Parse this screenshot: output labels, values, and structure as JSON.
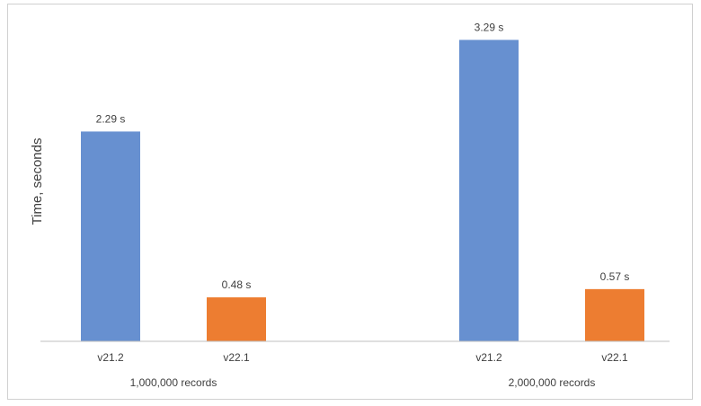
{
  "chart_data": {
    "type": "bar",
    "title": "",
    "xlabel": "",
    "ylabel": "Time, seconds",
    "ylim": [
      0,
      3.5
    ],
    "grid": false,
    "groups": [
      {
        "label": "1,000,000 records",
        "bars": [
          {
            "label": "v21.2",
            "value": 2.29,
            "value_label": "2.29 s",
            "color": "#6790d0"
          },
          {
            "label": "v22.1",
            "value": 0.48,
            "value_label": "0.48 s",
            "color": "#ed7d31"
          }
        ]
      },
      {
        "label": "2,000,000 records",
        "bars": [
          {
            "label": "v21.2",
            "value": 3.29,
            "value_label": "3.29 s",
            "color": "#6790d0"
          },
          {
            "label": "v22.1",
            "value": 0.57,
            "value_label": "0.57 s",
            "color": "#ed7d31"
          }
        ]
      }
    ]
  }
}
